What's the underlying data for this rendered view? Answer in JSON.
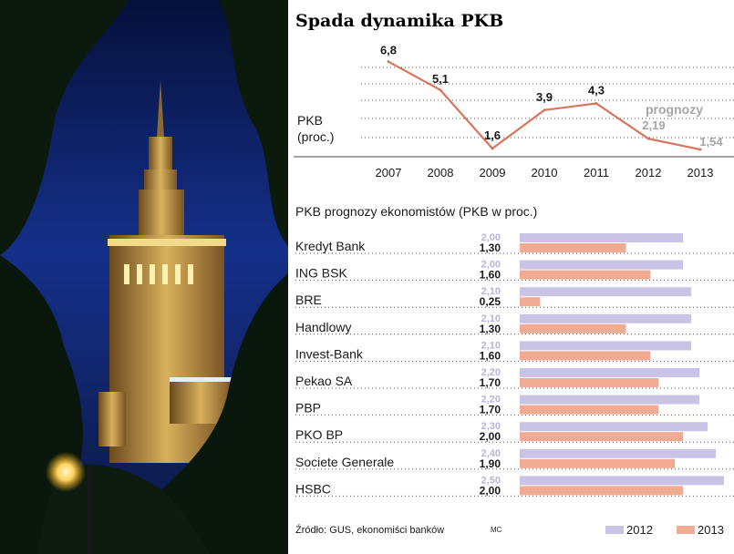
{
  "chart_data": [
    {
      "type": "line",
      "title": "Spada dynamika PKB",
      "ylabel_line1": "PKB",
      "ylabel_line2": "(proc.)",
      "x": [
        "2007",
        "2008",
        "2009",
        "2010",
        "2011",
        "2012",
        "2013"
      ],
      "values": [
        6.8,
        5.1,
        1.6,
        3.9,
        4.3,
        2.19,
        1.54
      ],
      "labels": [
        "6,8",
        "5,1",
        "1,6",
        "3,9",
        "4,3",
        "2,19",
        "1,54"
      ],
      "forecast_from_index": 5,
      "forecast_label": "prognozy",
      "ylim": [
        1,
        7
      ],
      "grid": true,
      "line_color": "#d9735a",
      "forecast_label_color": "#a6a6a6"
    },
    {
      "type": "bar",
      "orientation": "horizontal",
      "title": "PKB prognozy ekonomistów (PKB w proc.)",
      "categories": [
        "Kredyt Bank",
        "ING BSK",
        "BRE",
        "Handlowy",
        "Invest-Bank",
        "Pekao SA",
        "PBP",
        "PKO BP",
        "Societe Generale",
        "HSBC"
      ],
      "series": [
        {
          "name": "2012",
          "color": "#c9c4e6",
          "values": [
            2.0,
            2.0,
            2.1,
            2.1,
            2.1,
            2.2,
            2.2,
            2.3,
            2.4,
            2.5
          ],
          "labels": [
            "2,00",
            "2,00",
            "2,10",
            "2,10",
            "2,10",
            "2,20",
            "2,20",
            "2,30",
            "2,40",
            "2,50"
          ]
        },
        {
          "name": "2013",
          "color": "#f2ab93",
          "values": [
            1.3,
            1.6,
            0.25,
            1.3,
            1.6,
            1.7,
            1.7,
            2.0,
            1.9,
            2.0
          ],
          "labels": [
            "1,30",
            "1,60",
            "0,25",
            "1,30",
            "1,60",
            "1,70",
            "1,70",
            "2,00",
            "1,90",
            "2,00"
          ]
        }
      ],
      "xlim": [
        0,
        2.5
      ],
      "grid": true,
      "legend_position": "bottom-right"
    }
  ],
  "source": "Źródło: GUS, ekonomiści banków",
  "credit": "MC",
  "photo": {
    "subject": "palace-of-culture-night-photo",
    "sky_color": "#0b1a55",
    "tower_color": "#d7b45a"
  }
}
